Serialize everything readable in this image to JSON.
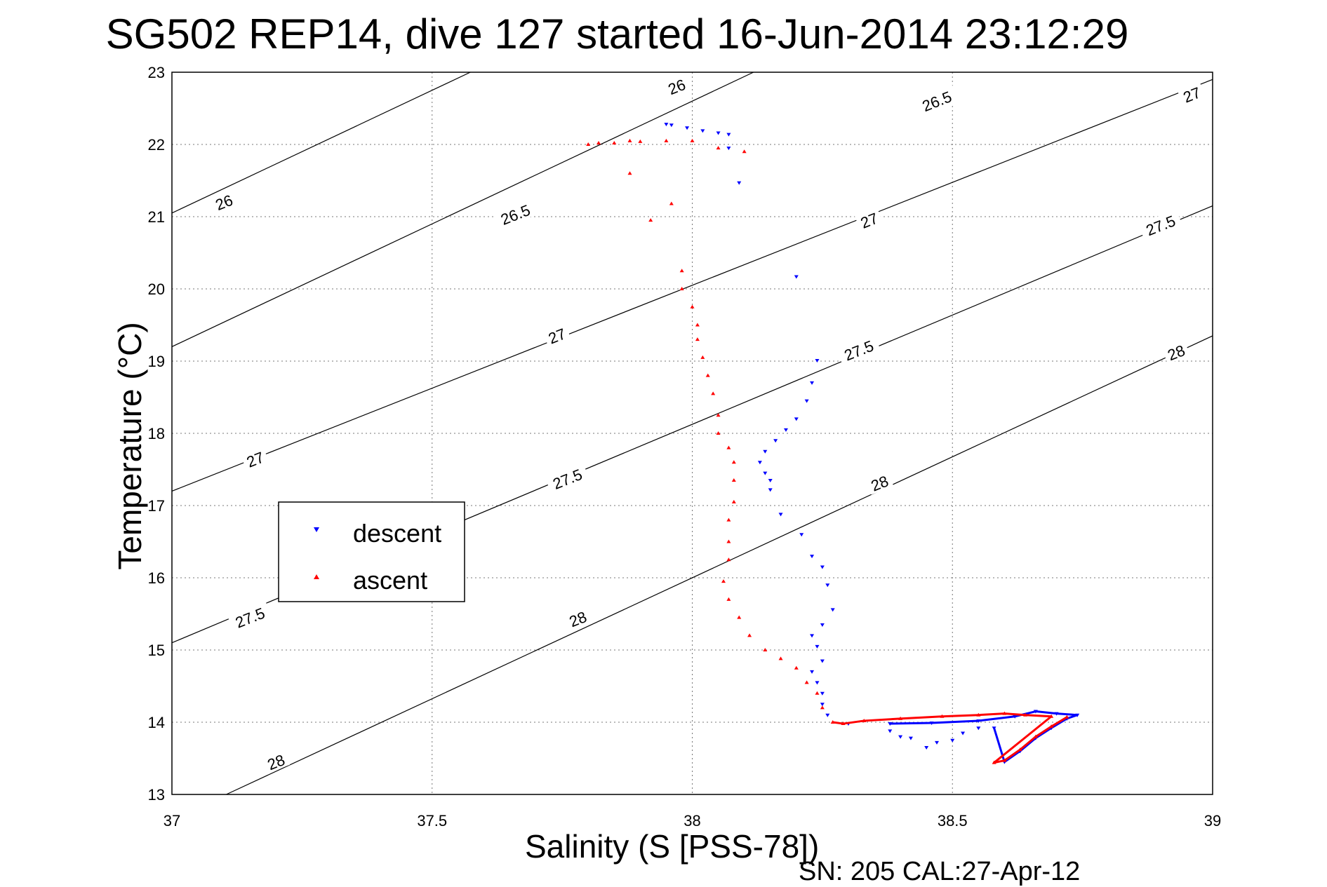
{
  "chart_data": {
    "type": "scatter",
    "title": "SG502 REP14, dive 127 started 16-Jun-2014 23:12:29",
    "xlabel": "Salinity (S [PSS-78])",
    "ylabel": "Temperature (°C)",
    "footer": "SN: 205  CAL:27-Apr-12",
    "xlim": [
      37,
      39
    ],
    "ylim": [
      13,
      23
    ],
    "xticks": [
      "37",
      "37.5",
      "38",
      "38.5",
      "39"
    ],
    "yticks": [
      "13",
      "14",
      "15",
      "16",
      "17",
      "18",
      "19",
      "20",
      "21",
      "22",
      "23"
    ],
    "grid": true,
    "legend_position": "left-middle",
    "isopycnals": [
      {
        "sigma": "26",
        "t_at_s37": 21.05,
        "t_at_s39": 27.85
      },
      {
        "sigma": "26.5",
        "t_at_s37": 19.2,
        "t_at_s39": 26.0
      },
      {
        "sigma": "27",
        "t_at_s37": 17.2,
        "t_at_s39": 22.9
      },
      {
        "sigma": "27.5",
        "t_at_s37": 15.1,
        "t_at_s39": 21.15
      },
      {
        "sigma": "28",
        "t_at_s37": 12.65,
        "t_at_s39": 19.35
      }
    ],
    "isopycnal_labels": [
      {
        "text": "26",
        "s": 37.97,
        "t": 22.8
      },
      {
        "text": "26",
        "s": 37.1,
        "t": 21.2
      },
      {
        "text": "26.5",
        "s": 38.47,
        "t": 22.6
      },
      {
        "text": "26.5",
        "s": 37.66,
        "t": 21.03
      },
      {
        "text": "27",
        "s": 38.96,
        "t": 22.69
      },
      {
        "text": "27",
        "s": 38.34,
        "t": 20.95
      },
      {
        "text": "27",
        "s": 37.74,
        "t": 19.35
      },
      {
        "text": "27",
        "s": 37.16,
        "t": 17.64
      },
      {
        "text": "27.5",
        "s": 38.9,
        "t": 20.88
      },
      {
        "text": "27.5",
        "s": 38.32,
        "t": 19.15
      },
      {
        "text": "27.5",
        "s": 37.76,
        "t": 17.37
      },
      {
        "text": "27.5",
        "s": 37.15,
        "t": 15.45
      },
      {
        "text": "28",
        "s": 38.93,
        "t": 19.12
      },
      {
        "text": "28",
        "s": 38.36,
        "t": 17.31
      },
      {
        "text": "28",
        "s": 37.78,
        "t": 15.43
      },
      {
        "text": "28",
        "s": 37.2,
        "t": 13.45
      }
    ],
    "series": [
      {
        "name": "descent",
        "color": "#0000ff",
        "marker": "triangle-down",
        "points": [
          [
            37.95,
            22.28
          ],
          [
            37.96,
            22.27
          ],
          [
            37.99,
            22.23
          ],
          [
            38.02,
            22.19
          ],
          [
            38.05,
            22.16
          ],
          [
            38.07,
            22.14
          ],
          [
            38.07,
            21.95
          ],
          [
            38.09,
            21.47
          ],
          [
            38.2,
            20.17
          ],
          [
            38.24,
            19.01
          ],
          [
            38.23,
            18.7
          ],
          [
            38.22,
            18.45
          ],
          [
            38.2,
            18.2
          ],
          [
            38.18,
            18.05
          ],
          [
            38.16,
            17.9
          ],
          [
            38.14,
            17.75
          ],
          [
            38.13,
            17.6
          ],
          [
            38.14,
            17.45
          ],
          [
            38.15,
            17.35
          ],
          [
            38.15,
            17.22
          ],
          [
            38.17,
            16.88
          ],
          [
            38.21,
            16.6
          ],
          [
            38.23,
            16.3
          ],
          [
            38.25,
            16.15
          ],
          [
            38.26,
            15.9
          ],
          [
            38.27,
            15.56
          ],
          [
            38.25,
            15.35
          ],
          [
            38.23,
            15.2
          ],
          [
            38.24,
            15.05
          ],
          [
            38.25,
            14.85
          ],
          [
            38.23,
            14.7
          ],
          [
            38.24,
            14.55
          ],
          [
            38.25,
            14.4
          ],
          [
            38.25,
            14.25
          ],
          [
            38.26,
            14.1
          ],
          [
            38.3,
            13.98
          ],
          [
            38.38,
            13.98
          ],
          [
            38.46,
            13.99
          ],
          [
            38.55,
            14.02
          ],
          [
            38.62,
            14.08
          ],
          [
            38.66,
            14.15
          ],
          [
            38.7,
            14.12
          ],
          [
            38.74,
            14.1
          ],
          [
            38.72,
            14.05
          ],
          [
            38.69,
            13.92
          ],
          [
            38.66,
            13.78
          ],
          [
            38.63,
            13.6
          ],
          [
            38.6,
            13.45
          ],
          [
            38.58,
            13.92
          ],
          [
            38.55,
            13.92
          ],
          [
            38.52,
            13.85
          ],
          [
            38.5,
            13.75
          ],
          [
            38.47,
            13.72
          ],
          [
            38.45,
            13.65
          ],
          [
            38.42,
            13.78
          ],
          [
            38.4,
            13.8
          ],
          [
            38.38,
            13.88
          ]
        ]
      },
      {
        "name": "ascent",
        "color": "#ff0000",
        "marker": "triangle-up",
        "points": [
          [
            38.72,
            14.07
          ],
          [
            38.69,
            13.94
          ],
          [
            38.66,
            13.8
          ],
          [
            38.63,
            13.62
          ],
          [
            38.6,
            13.47
          ],
          [
            38.58,
            13.44
          ],
          [
            38.69,
            14.08
          ],
          [
            38.64,
            14.1
          ],
          [
            38.6,
            14.12
          ],
          [
            38.55,
            14.1
          ],
          [
            38.48,
            14.08
          ],
          [
            38.4,
            14.05
          ],
          [
            38.33,
            14.02
          ],
          [
            38.29,
            13.98
          ],
          [
            38.27,
            14.0
          ],
          [
            38.25,
            14.2
          ],
          [
            38.24,
            14.4
          ],
          [
            38.22,
            14.55
          ],
          [
            38.2,
            14.75
          ],
          [
            38.17,
            14.88
          ],
          [
            38.14,
            15.0
          ],
          [
            38.11,
            15.2
          ],
          [
            38.09,
            15.45
          ],
          [
            38.07,
            15.7
          ],
          [
            38.06,
            15.95
          ],
          [
            38.07,
            16.25
          ],
          [
            38.07,
            16.5
          ],
          [
            38.07,
            16.8
          ],
          [
            38.08,
            17.05
          ],
          [
            38.08,
            17.35
          ],
          [
            38.08,
            17.6
          ],
          [
            38.07,
            17.8
          ],
          [
            38.05,
            18.0
          ],
          [
            38.05,
            18.25
          ],
          [
            38.04,
            18.55
          ],
          [
            38.03,
            18.8
          ],
          [
            38.02,
            19.05
          ],
          [
            38.01,
            19.3
          ],
          [
            38.01,
            19.5
          ],
          [
            38.0,
            19.75
          ],
          [
            37.98,
            20.0
          ],
          [
            37.98,
            20.25
          ],
          [
            37.96,
            21.18
          ],
          [
            37.92,
            20.95
          ],
          [
            37.88,
            21.6
          ],
          [
            37.85,
            22.02
          ],
          [
            37.88,
            22.05
          ],
          [
            37.9,
            22.04
          ],
          [
            37.95,
            22.05
          ],
          [
            38.0,
            22.05
          ],
          [
            37.8,
            22.0
          ],
          [
            37.82,
            22.02
          ],
          [
            38.05,
            21.95
          ],
          [
            38.1,
            21.9
          ]
        ]
      }
    ]
  }
}
